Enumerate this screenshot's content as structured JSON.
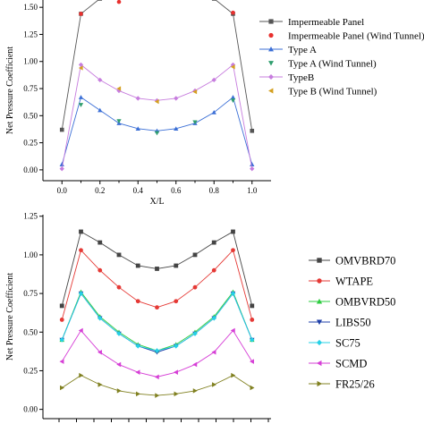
{
  "chart_data": [
    {
      "type": "line",
      "xlabel": "X/L",
      "ylabel": "Net Pressure Coefficient",
      "xlim": [
        -0.1,
        1.1
      ],
      "ylim": [
        -0.1,
        1.65
      ],
      "xticks": [
        0.0,
        0.2,
        0.4,
        0.6,
        0.8,
        1.0
      ],
      "xtick_labels": [
        "0.0",
        "0.2",
        "0.4",
        "0.6",
        "0.8",
        "1.0"
      ],
      "yticks": [
        0.0,
        0.25,
        0.5,
        0.75,
        1.0,
        1.25,
        1.5
      ],
      "ytick_labels": [
        "0.00",
        "0.25",
        "0.50",
        "0.75",
        "1.00",
        "1.25",
        "1.50"
      ],
      "legend_position": "right",
      "series": [
        {
          "name": "Impermeable Panel",
          "marker": "square",
          "color": "#555555",
          "line": true,
          "x": [
            0.0,
            0.1,
            0.2,
            0.3,
            0.4,
            0.5,
            0.6,
            0.7,
            0.8,
            0.9,
            1.0
          ],
          "y": [
            0.37,
            1.44,
            1.58,
            1.6,
            1.6,
            1.6,
            1.6,
            1.6,
            1.58,
            1.44,
            0.36
          ]
        },
        {
          "name": "Impermeable Panel (Wind Tunnel)",
          "marker": "circle",
          "color": "#e8302e",
          "line": false,
          "x": [
            0.1,
            0.3,
            0.5,
            0.7,
            0.9
          ],
          "y": [
            1.44,
            1.55,
            1.61,
            1.6,
            1.45
          ]
        },
        {
          "name": "Type A",
          "marker": "triangle-up",
          "color": "#3b6fd6",
          "line": true,
          "x": [
            0.0,
            0.1,
            0.2,
            0.3,
            0.4,
            0.5,
            0.6,
            0.7,
            0.8,
            0.9,
            1.0
          ],
          "y": [
            0.05,
            0.67,
            0.55,
            0.43,
            0.38,
            0.36,
            0.38,
            0.43,
            0.53,
            0.67,
            0.05
          ]
        },
        {
          "name": "Type A (Wind Tunnel)",
          "marker": "triangle-down",
          "color": "#2f9e6e",
          "line": false,
          "x": [
            0.1,
            0.3,
            0.5,
            0.7,
            0.9
          ],
          "y": [
            0.6,
            0.45,
            0.34,
            0.44,
            0.64
          ]
        },
        {
          "name": "TypeB",
          "marker": "diamond",
          "color": "#c77dde",
          "line": true,
          "x": [
            0.0,
            0.1,
            0.2,
            0.3,
            0.4,
            0.5,
            0.6,
            0.7,
            0.8,
            0.9,
            1.0
          ],
          "y": [
            0.01,
            0.97,
            0.83,
            0.73,
            0.66,
            0.64,
            0.66,
            0.73,
            0.83,
            0.97,
            0.01
          ]
        },
        {
          "name": "Type B (Wind Tunnel)",
          "marker": "triangle-left",
          "color": "#d4a020",
          "line": false,
          "x": [
            0.1,
            0.3,
            0.5,
            0.7,
            0.9
          ],
          "y": [
            0.94,
            0.75,
            0.63,
            0.72,
            0.95
          ]
        }
      ]
    },
    {
      "type": "line",
      "xlabel": "",
      "ylabel": "Net Pressure Coefficient",
      "xlim": [
        -0.1,
        1.1
      ],
      "ylim": [
        -0.06,
        1.26
      ],
      "yticks": [
        0.0,
        0.25,
        0.5,
        0.75,
        1.0,
        1.25
      ],
      "ytick_labels": [
        "0.00",
        "0.25",
        "0.50",
        "0.75",
        "1.00",
        "1.25"
      ],
      "legend_position": "right",
      "x": [
        0.0,
        0.1,
        0.2,
        0.3,
        0.4,
        0.5,
        0.6,
        0.7,
        0.8,
        0.9,
        1.0
      ],
      "series": [
        {
          "name": "OMVBRD70",
          "marker": "square",
          "color": "#444444",
          "y": [
            0.67,
            1.15,
            1.08,
            1.0,
            0.93,
            0.91,
            0.93,
            1.0,
            1.08,
            1.15,
            0.67
          ]
        },
        {
          "name": "WTAPE",
          "marker": "circle",
          "color": "#e53935",
          "y": [
            0.58,
            1.03,
            0.9,
            0.79,
            0.7,
            0.66,
            0.7,
            0.79,
            0.9,
            1.03,
            0.58
          ]
        },
        {
          "name": "OMBVRD50",
          "marker": "triangle-up",
          "color": "#2ecc40",
          "y": [
            0.45,
            0.76,
            0.6,
            0.5,
            0.42,
            0.38,
            0.42,
            0.5,
            0.6,
            0.76,
            0.45
          ]
        },
        {
          "name": "LIBS50",
          "marker": "triangle-down",
          "color": "#1f3fa8",
          "y": [
            0.45,
            0.75,
            0.59,
            0.49,
            0.41,
            0.37,
            0.41,
            0.49,
            0.59,
            0.75,
            0.45
          ]
        },
        {
          "name": "SC75",
          "marker": "diamond",
          "color": "#26d0e6",
          "y": [
            0.45,
            0.75,
            0.59,
            0.49,
            0.41,
            0.38,
            0.41,
            0.49,
            0.59,
            0.75,
            0.45
          ]
        },
        {
          "name": "SCMD",
          "marker": "triangle-left",
          "color": "#d63fd6",
          "y": [
            0.31,
            0.51,
            0.37,
            0.29,
            0.24,
            0.21,
            0.24,
            0.29,
            0.37,
            0.51,
            0.31
          ]
        },
        {
          "name": "FR25/26",
          "marker": "triangle-right",
          "color": "#808020",
          "y": [
            0.14,
            0.22,
            0.16,
            0.12,
            0.1,
            0.09,
            0.1,
            0.12,
            0.16,
            0.22,
            0.14
          ]
        }
      ]
    }
  ]
}
